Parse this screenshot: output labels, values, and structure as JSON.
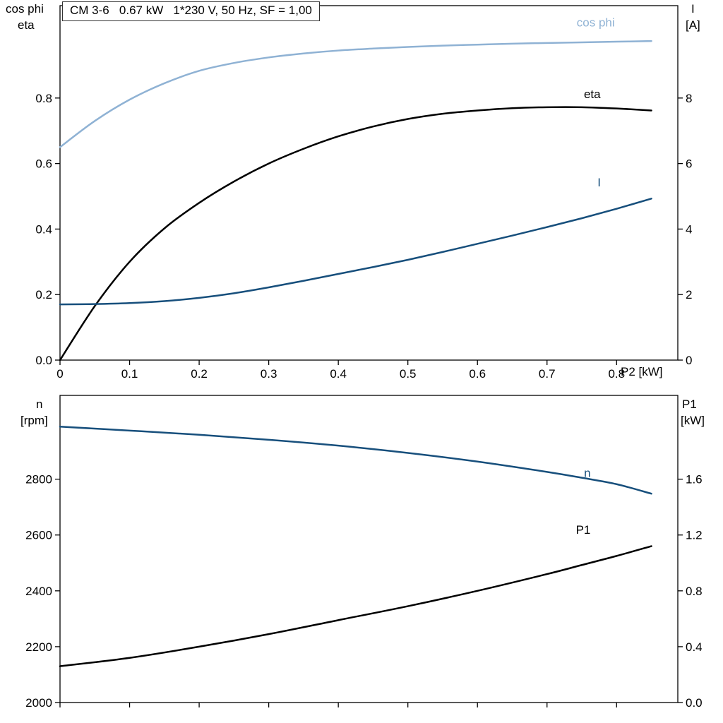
{
  "page": {
    "background": "#ffffff"
  },
  "title_box": "CM 3-6   0.67 kW   1*230 V, 50 Hz, SF = 1,00",
  "labels": {
    "top_left_line1": "cos phi",
    "top_left_line2": "eta",
    "top_right_line1": "I",
    "top_right_line2": "[A]",
    "x_axis": "P2 [kW]",
    "bottom_left_line1": "n",
    "bottom_left_line2": "[rpm]",
    "bottom_right_line1": "P1",
    "bottom_right_line2": "[kW]"
  },
  "colors": {
    "light_blue": "#8fb2d4",
    "dark_blue": "#174f7c",
    "black": "#000000",
    "frame": "#000000"
  },
  "chart_data": [
    {
      "type": "line",
      "title": "CM 3-6   0.67 kW   1*230 V, 50 Hz, SF = 1,00",
      "x_axis": {
        "min": 0,
        "max": 0.888,
        "label": "P2 [kW]",
        "ticks": [
          {
            "v": 0,
            "label": "0"
          },
          {
            "v": 0.1,
            "label": "0.1"
          },
          {
            "v": 0.2,
            "label": "0.2"
          },
          {
            "v": 0.3,
            "label": "0.3"
          },
          {
            "v": 0.4,
            "label": "0.4"
          },
          {
            "v": 0.5,
            "label": "0.5"
          },
          {
            "v": 0.6,
            "label": "0.6"
          },
          {
            "v": 0.7,
            "label": "0.7"
          },
          {
            "v": 0.8,
            "label": "0.8"
          }
        ]
      },
      "left_axis": {
        "min": 0,
        "max": 1.082,
        "label": "cos phi / eta",
        "ticks": [
          {
            "v": 0.0,
            "label": "0.0"
          },
          {
            "v": 0.2,
            "label": "0.2"
          },
          {
            "v": 0.4,
            "label": "0.4"
          },
          {
            "v": 0.6,
            "label": "0.6"
          },
          {
            "v": 0.8,
            "label": "0.8"
          }
        ]
      },
      "right_axis": {
        "min": 0,
        "max": 10.82,
        "label": "I [A]",
        "ticks": [
          {
            "v": 0,
            "label": "0"
          },
          {
            "v": 2,
            "label": "2"
          },
          {
            "v": 4,
            "label": "4"
          },
          {
            "v": 6,
            "label": "6"
          },
          {
            "v": 8,
            "label": "8"
          }
        ]
      },
      "series": [
        {
          "name": "cos phi",
          "axis": "left",
          "color": "#8fb2d4",
          "label": "cos phi",
          "label_at": [
            0.77,
            1.018
          ],
          "x": [
            0,
            0.05,
            0.1,
            0.15,
            0.2,
            0.25,
            0.3,
            0.35,
            0.4,
            0.45,
            0.5,
            0.55,
            0.6,
            0.65,
            0.7,
            0.75,
            0.8,
            0.85
          ],
          "y": [
            0.65,
            0.73,
            0.795,
            0.845,
            0.883,
            0.907,
            0.924,
            0.936,
            0.945,
            0.951,
            0.956,
            0.96,
            0.963,
            0.966,
            0.968,
            0.97,
            0.972,
            0.974
          ]
        },
        {
          "name": "eta",
          "axis": "left",
          "color": "#000000",
          "label": "eta",
          "label_at": [
            0.765,
            0.8
          ],
          "x": [
            0,
            0.05,
            0.1,
            0.15,
            0.2,
            0.25,
            0.3,
            0.35,
            0.4,
            0.45,
            0.5,
            0.55,
            0.6,
            0.65,
            0.7,
            0.75,
            0.8,
            0.85
          ],
          "y": [
            0.0,
            0.165,
            0.3,
            0.402,
            0.48,
            0.545,
            0.6,
            0.645,
            0.683,
            0.713,
            0.736,
            0.752,
            0.762,
            0.769,
            0.772,
            0.772,
            0.768,
            0.762
          ]
        },
        {
          "name": "I",
          "axis": "right",
          "color": "#174f7c",
          "label": "I",
          "label_at": [
            0.775,
            5.3
          ],
          "x": [
            0,
            0.05,
            0.1,
            0.15,
            0.2,
            0.25,
            0.3,
            0.35,
            0.4,
            0.45,
            0.5,
            0.55,
            0.6,
            0.65,
            0.7,
            0.75,
            0.8,
            0.85
          ],
          "y": [
            1.7,
            1.71,
            1.74,
            1.8,
            1.9,
            2.04,
            2.22,
            2.42,
            2.63,
            2.84,
            3.06,
            3.3,
            3.55,
            3.8,
            4.06,
            4.33,
            4.62,
            4.93
          ]
        }
      ]
    },
    {
      "type": "line",
      "title": "",
      "x_axis": {
        "min": 0,
        "max": 0.888,
        "label": "",
        "ticks": [
          {
            "v": 0,
            "label": ""
          },
          {
            "v": 0.1,
            "label": ""
          },
          {
            "v": 0.2,
            "label": ""
          },
          {
            "v": 0.3,
            "label": ""
          },
          {
            "v": 0.4,
            "label": ""
          },
          {
            "v": 0.5,
            "label": ""
          },
          {
            "v": 0.6,
            "label": ""
          },
          {
            "v": 0.7,
            "label": ""
          },
          {
            "v": 0.8,
            "label": ""
          }
        ]
      },
      "left_axis": {
        "min": 2000,
        "max": 3100,
        "label": "n [rpm]",
        "ticks": [
          {
            "v": 2000,
            "label": "2000"
          },
          {
            "v": 2200,
            "label": "2200"
          },
          {
            "v": 2400,
            "label": "2400"
          },
          {
            "v": 2600,
            "label": "2600"
          },
          {
            "v": 2800,
            "label": "2800"
          }
        ]
      },
      "right_axis": {
        "min": 0,
        "max": 2.2,
        "label": "P1 [kW]",
        "ticks": [
          {
            "v": 0.0,
            "label": "0.0"
          },
          {
            "v": 0.4,
            "label": "0.4"
          },
          {
            "v": 0.8,
            "label": "0.8"
          },
          {
            "v": 1.2,
            "label": "1.2"
          },
          {
            "v": 1.6,
            "label": "1.6"
          }
        ]
      },
      "series": [
        {
          "name": "n",
          "axis": "left",
          "color": "#174f7c",
          "label": "n",
          "label_at": [
            0.758,
            2808
          ],
          "x": [
            0,
            0.1,
            0.2,
            0.3,
            0.4,
            0.5,
            0.6,
            0.7,
            0.75,
            0.8,
            0.85
          ],
          "y": [
            2988,
            2974,
            2959,
            2941,
            2920,
            2894,
            2863,
            2826,
            2805,
            2782,
            2748
          ]
        },
        {
          "name": "P1",
          "axis": "right",
          "color": "#000000",
          "label": "P1",
          "label_at": [
            0.752,
            1.21
          ],
          "x": [
            0,
            0.1,
            0.2,
            0.3,
            0.4,
            0.5,
            0.6,
            0.7,
            0.75,
            0.8,
            0.85
          ],
          "y": [
            0.26,
            0.32,
            0.4,
            0.49,
            0.59,
            0.69,
            0.8,
            0.92,
            0.985,
            1.05,
            1.12
          ]
        }
      ]
    }
  ]
}
